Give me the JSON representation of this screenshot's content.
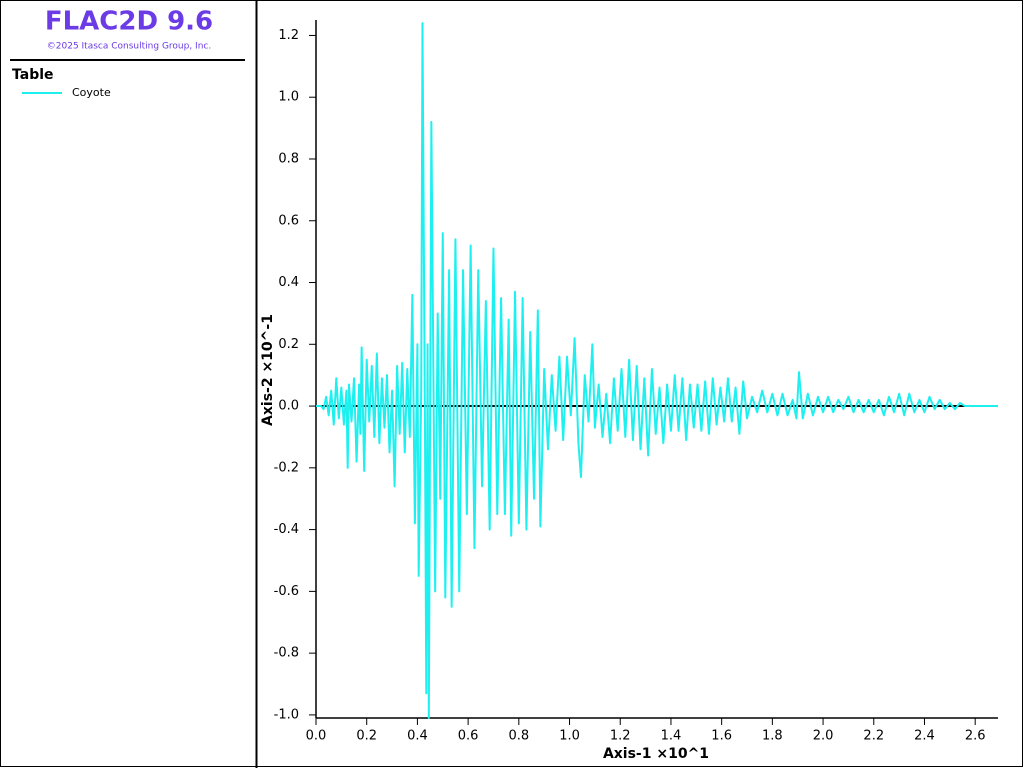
{
  "header": {
    "title": "FLAC2D 9.6",
    "copyright": "©2025 Itasca Consulting Group, Inc."
  },
  "chart_data": {
    "type": "line",
    "legend_title": "Table",
    "x_label": "Axis-1 ×10^1",
    "y_label": "Axis-2 ×10^-1",
    "xlim": [
      0,
      2.69
    ],
    "ylim": [
      -1.01,
      1.25
    ],
    "xticks": [
      {
        "value": 0,
        "label": "0.0"
      },
      0.2,
      0.4,
      0.6,
      0.8,
      {
        "value": 1,
        "label": "1.0"
      },
      1.2,
      1.4,
      1.6,
      1.8,
      {
        "value": 2,
        "label": "2.0"
      },
      2.2,
      2.4,
      2.6
    ],
    "yticks": [
      {
        "value": -1,
        "label": "-1.0"
      },
      -0.8,
      -0.6,
      -0.4,
      -0.2,
      {
        "value": 0,
        "label": "0.0"
      },
      0.2,
      0.4,
      0.6,
      0.8,
      {
        "value": 1,
        "label": "1.0"
      },
      1.2
    ],
    "x": [
      0,
      0.02,
      0.03,
      0.04,
      0.05,
      0.06,
      0.07,
      0.08,
      0.09,
      0.1,
      0.11,
      0.12,
      0.125,
      0.13,
      0.14,
      0.15,
      0.16,
      0.17,
      0.175,
      0.18,
      0.19,
      0.2,
      0.21,
      0.22,
      0.23,
      0.24,
      0.25,
      0.26,
      0.27,
      0.28,
      0.29,
      0.3,
      0.31,
      0.32,
      0.33,
      0.34,
      0.35,
      0.36,
      0.37,
      0.38,
      0.39,
      0.4,
      0.405,
      0.415,
      0.42,
      0.43,
      0.435,
      0.44,
      0.445,
      0.455,
      0.47,
      0.48,
      0.49,
      0.5,
      0.51,
      0.525,
      0.535,
      0.55,
      0.565,
      0.58,
      0.595,
      0.61,
      0.625,
      0.64,
      0.655,
      0.67,
      0.685,
      0.7,
      0.715,
      0.73,
      0.745,
      0.76,
      0.77,
      0.785,
      0.8,
      0.815,
      0.83,
      0.845,
      0.86,
      0.875,
      0.885,
      0.9,
      0.915,
      0.93,
      0.945,
      0.96,
      0.975,
      0.99,
      1.005,
      1.02,
      1.035,
      1.045,
      1.06,
      1.075,
      1.09,
      1.1,
      1.115,
      1.13,
      1.145,
      1.16,
      1.175,
      1.19,
      1.205,
      1.22,
      1.235,
      1.25,
      1.265,
      1.28,
      1.295,
      1.31,
      1.325,
      1.34,
      1.355,
      1.37,
      1.385,
      1.4,
      1.415,
      1.43,
      1.445,
      1.46,
      1.475,
      1.49,
      1.505,
      1.52,
      1.535,
      1.55,
      1.565,
      1.58,
      1.595,
      1.61,
      1.625,
      1.64,
      1.655,
      1.67,
      1.685,
      1.7,
      1.72,
      1.74,
      1.76,
      1.78,
      1.8,
      1.82,
      1.84,
      1.86,
      1.88,
      1.895,
      1.905,
      1.92,
      1.94,
      1.96,
      1.98,
      2,
      2.02,
      2.04,
      2.06,
      2.08,
      2.1,
      2.12,
      2.14,
      2.16,
      2.18,
      2.2,
      2.22,
      2.24,
      2.26,
      2.28,
      2.3,
      2.32,
      2.34,
      2.36,
      2.38,
      2.4,
      2.42,
      2.44,
      2.46,
      2.48,
      2.5,
      2.52,
      2.54,
      2.56,
      2.6,
      2.69
    ],
    "series": [
      {
        "name": "Coyote",
        "color": "#1ef0f0",
        "values": [
          0,
          0,
          -0.01,
          0.03,
          -0.03,
          0.05,
          -0.06,
          0.09,
          -0.04,
          0.06,
          -0.06,
          0.05,
          -0.2,
          0.07,
          -0.05,
          0.09,
          -0.18,
          0.07,
          -0.09,
          0.19,
          -0.21,
          0.15,
          -0.05,
          0.13,
          -0.1,
          0.17,
          -0.12,
          0.09,
          -0.07,
          0.1,
          -0.15,
          0.05,
          -0.26,
          0.13,
          -0.09,
          0.14,
          -0.15,
          0.12,
          -0.1,
          0.36,
          -0.38,
          0.2,
          -0.55,
          0.05,
          1.24,
          -0.1,
          -0.93,
          0.2,
          -1.01,
          0.92,
          -0.6,
          0.3,
          -0.3,
          0.56,
          -0.62,
          0.44,
          -0.65,
          0.54,
          -0.6,
          0.44,
          -0.35,
          0.52,
          -0.46,
          0.44,
          -0.26,
          0.34,
          -0.4,
          0.51,
          -0.35,
          0.35,
          -0.35,
          0.28,
          -0.42,
          0.37,
          -0.38,
          0.35,
          -0.4,
          0.24,
          -0.3,
          0.31,
          -0.39,
          0.12,
          -0.14,
          0.1,
          -0.08,
          0.16,
          -0.11,
          0.16,
          -0.03,
          0.22,
          -0.12,
          -0.23,
          0.1,
          -0.05,
          0.2,
          -0.07,
          0.07,
          -0.1,
          0.04,
          -0.12,
          0.09,
          -0.08,
          0.12,
          -0.1,
          0.15,
          -0.11,
          0.13,
          -0.14,
          0.09,
          -0.16,
          0.12,
          -0.09,
          0.06,
          -0.12,
          0.07,
          -0.08,
          0.1,
          -0.08,
          0.09,
          -0.11,
          0.07,
          -0.07,
          0.07,
          -0.08,
          0.08,
          -0.09,
          0.09,
          -0.06,
          0.06,
          -0.05,
          0.09,
          -0.05,
          0.06,
          -0.09,
          0.08,
          -0.04,
          0.03,
          -0.02,
          0.05,
          -0.02,
          0.04,
          -0.03,
          0.04,
          -0.03,
          0.02,
          -0.04,
          0.11,
          -0.04,
          0.04,
          -0.03,
          0.03,
          -0.02,
          0.03,
          -0.02,
          0.02,
          -0.01,
          0.03,
          -0.02,
          0.02,
          -0.02,
          0.02,
          -0.02,
          0.02,
          -0.03,
          0.03,
          -0.02,
          0.04,
          -0.03,
          0.04,
          -0.02,
          0.02,
          -0.02,
          0.03,
          -0.01,
          0.02,
          -0.01,
          0.01,
          -0.01,
          0.01,
          0,
          0,
          0
        ]
      }
    ]
  }
}
